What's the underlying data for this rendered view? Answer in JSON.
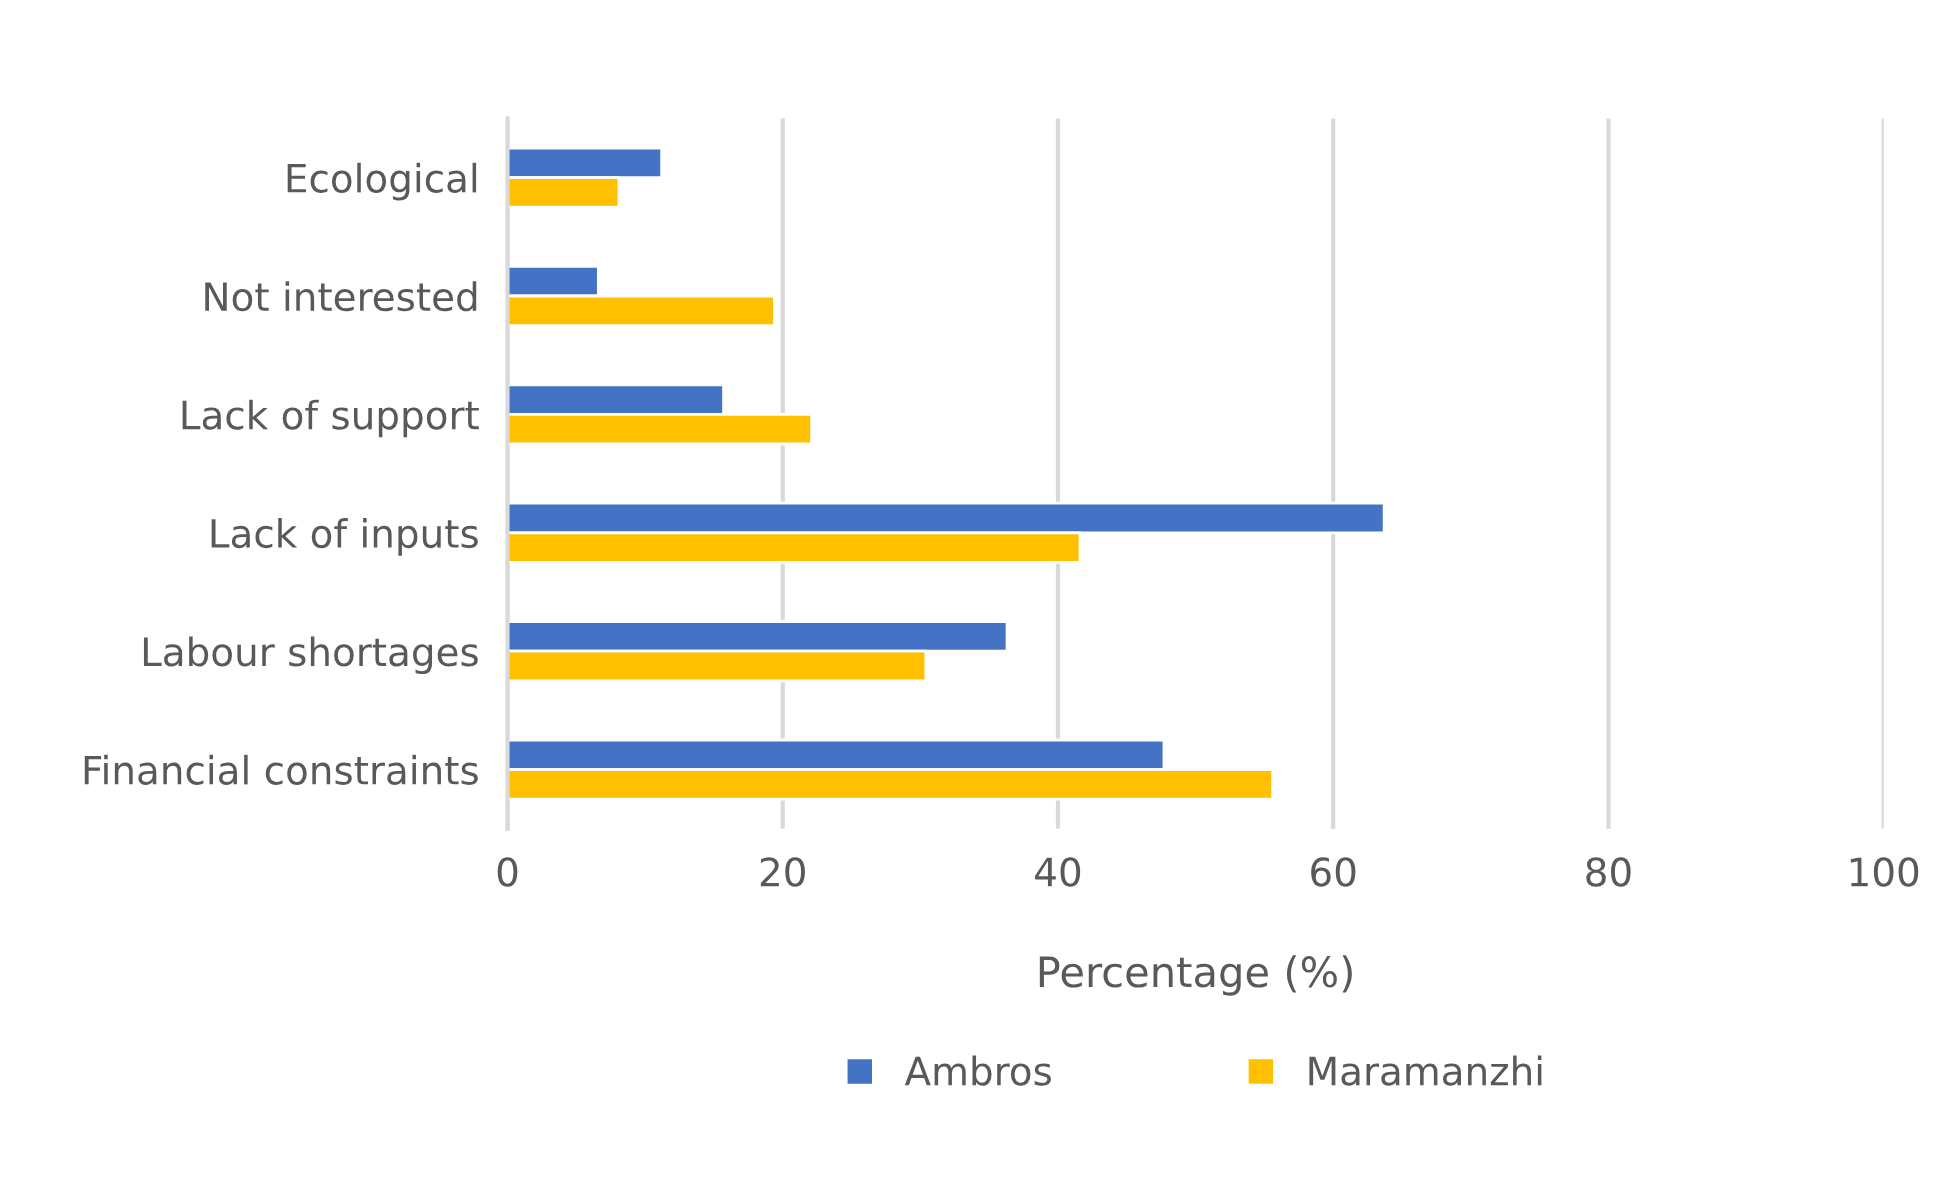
{
  "chart_data": {
    "type": "bar",
    "orientation": "horizontal",
    "categories": [
      "Ecological",
      "Not interested",
      "Lack of support",
      "Lack of inputs",
      "Labour shortages",
      "Financial constraints"
    ],
    "series": [
      {
        "name": "Ambros",
        "color": "#4472c4",
        "values": [
          11.2,
          6.6,
          15.7,
          63.7,
          36.3,
          47.7
        ]
      },
      {
        "name": "Maramanzhi",
        "color": "#ffc000",
        "values": [
          8.1,
          19.4,
          22.1,
          41.6,
          30.4,
          55.6
        ]
      }
    ],
    "xlabel": "Percentage (%)",
    "xlim": [
      0,
      100
    ],
    "xticks": [
      0,
      20,
      40,
      60,
      80,
      100
    ],
    "grid": "x",
    "legend": "bottom"
  }
}
